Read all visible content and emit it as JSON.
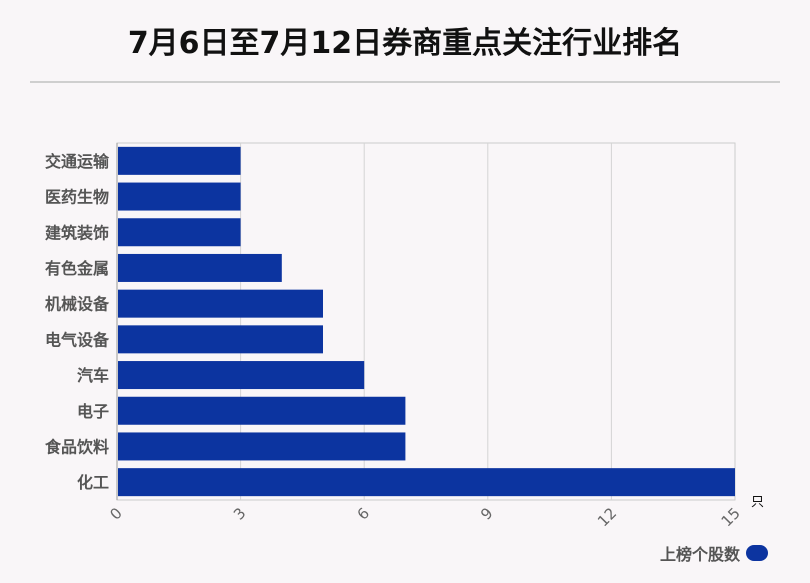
{
  "title": "7月6日至7月12日券商重点关注行业排名",
  "chart_data": {
    "type": "bar",
    "orientation": "horizontal",
    "categories": [
      "交通运输",
      "医药生物",
      "建筑装饰",
      "有色金属",
      "机械设备",
      "电气设备",
      "汽车",
      "电子",
      "食品饮料",
      "化工"
    ],
    "series": [
      {
        "name": "上榜个股数",
        "values": [
          3,
          3,
          3,
          4,
          5,
          5,
          6,
          7,
          7,
          15
        ]
      }
    ],
    "x_ticks": [
      "0",
      "3",
      "6",
      "9",
      "12",
      "15"
    ],
    "xlim": [
      0,
      15
    ],
    "x_unit": "只",
    "grid": true,
    "legend_position": "bottom-right",
    "bar_color": "#0c34a0"
  }
}
